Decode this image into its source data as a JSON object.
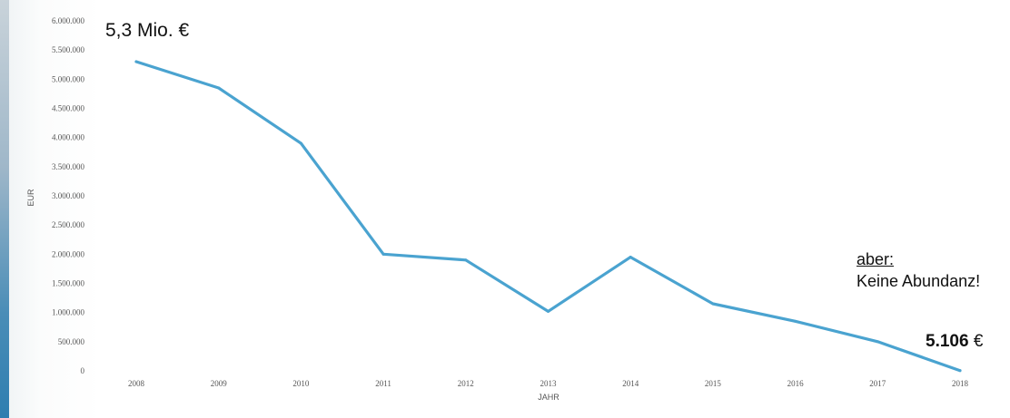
{
  "chart_data": {
    "type": "line",
    "title": "",
    "xlabel": "JAHR",
    "ylabel": "EUR",
    "categories": [
      "2008",
      "2009",
      "2010",
      "2011",
      "2012",
      "2013",
      "2014",
      "2015",
      "2016",
      "2017",
      "2018"
    ],
    "series": [
      {
        "values": [
          5300000,
          4850000,
          3900000,
          2000000,
          1900000,
          1020000,
          1950000,
          1150000,
          850000,
          500000,
          5106
        ],
        "color": "#4aa3d0"
      }
    ],
    "ylim": [
      0,
      6000000
    ],
    "yticks": [
      "0",
      "500.000",
      "1.000.000",
      "1.500.000",
      "2.000.000",
      "2.500.000",
      "3.000.000",
      "3.500.000",
      "4.000.000",
      "4.500.000",
      "5.000.000",
      "5.500.000",
      "6.000.000"
    ],
    "xtick_labels": [
      "2008",
      "2009",
      "2010",
      "2011",
      "2012",
      "2013",
      "2014",
      "2015",
      "2016",
      "2017",
      "2018"
    ],
    "grid": false,
    "legend": "none"
  },
  "annotations": {
    "top_value": "5,3 Mio. €",
    "aber": "aber:",
    "keine_abundanz": "Keine Abundanz!",
    "end_value_number": "5.106",
    "end_value_unit": " €"
  }
}
